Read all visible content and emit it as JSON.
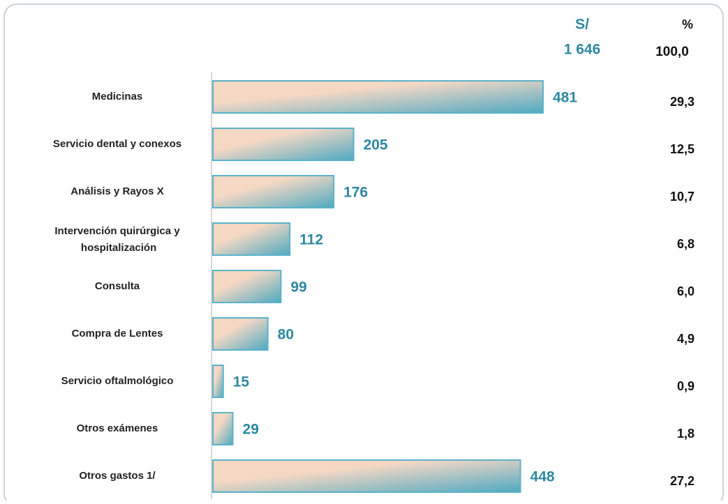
{
  "chart_data": {
    "type": "bar",
    "orientation": "horizontal",
    "value_header": "S/",
    "total": {
      "value": 1646,
      "label": "1 646"
    },
    "share_header": "%",
    "share_total": {
      "value": 100,
      "label": "100,0"
    },
    "categories": [
      "Medicinas",
      "Servicio dental y conexos",
      "Análisis y Rayos X",
      "Intervención quirúrgica y hospitalización",
      "Consulta",
      "Compra de Lentes",
      "Servicio oftalmológico",
      "Otros exámenes",
      "Otros gastos 1/"
    ],
    "values": [
      481,
      205,
      176,
      112,
      99,
      80,
      15,
      29,
      448
    ],
    "shares": [
      29.3,
      12.5,
      10.7,
      6.8,
      6.0,
      4.9,
      0.9,
      1.8,
      27.2
    ],
    "share_labels": [
      "29,3",
      "12,5",
      "10,7",
      "6,8",
      "6,0",
      "4,9",
      "0,9",
      "1,8",
      "27,2"
    ],
    "xlim": [
      0,
      600
    ],
    "color_start": "#f4d8c4",
    "color_end": "#4fa9c2",
    "border_color": "#5ab2c9",
    "label_color": "#2f88a0"
  }
}
